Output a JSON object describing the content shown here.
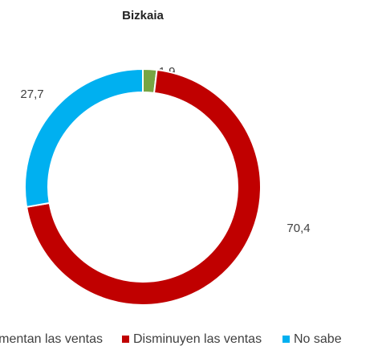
{
  "chart_data": {
    "type": "donut",
    "title": "Bizkaia",
    "categories": [
      "Aumentan las ventas",
      "Disminuyen las ventas",
      "No sabe"
    ],
    "values": [
      1.9,
      70.4,
      27.7
    ],
    "value_labels": [
      "1,9",
      "70,4",
      "27,7"
    ],
    "colors": [
      "#77a543",
      "#c00000",
      "#00b0f0"
    ],
    "legend": "bottom"
  }
}
